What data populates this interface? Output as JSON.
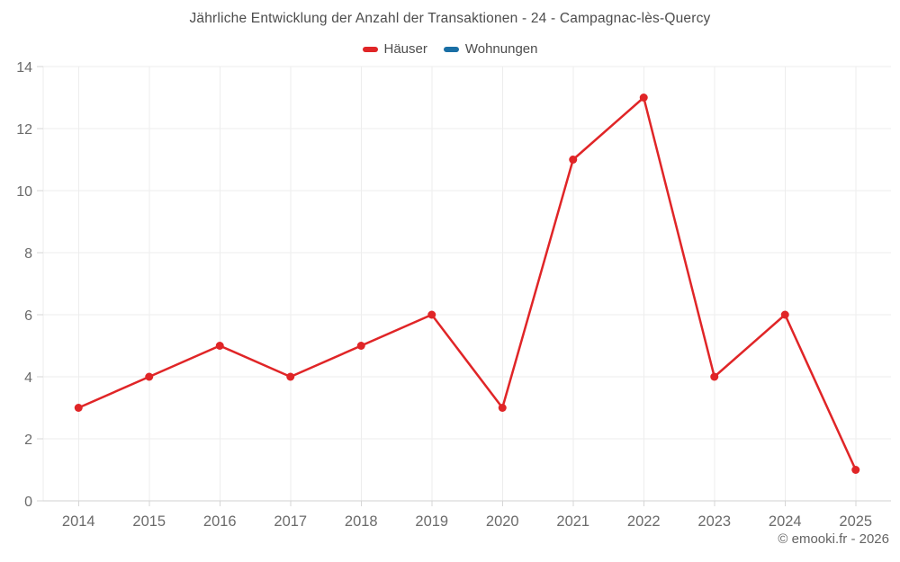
{
  "chart": {
    "title": "Jährliche Entwicklung der Anzahl der Transaktionen - 24 - Campagnac-lès-Quercy",
    "copyright": "© emooki.fr - 2026"
  },
  "chart_data": {
    "type": "line",
    "title": "Jährliche Entwicklung der Anzahl der Transaktionen - 24 - Campagnac-lès-Quercy",
    "categories": [
      "2014",
      "2015",
      "2016",
      "2017",
      "2018",
      "2019",
      "2020",
      "2021",
      "2022",
      "2023",
      "2024",
      "2025"
    ],
    "series": [
      {
        "name": "Häuser",
        "color": "#e02527",
        "values": [
          3,
          4,
          5,
          4,
          5,
          6,
          3,
          11,
          13,
          4,
          6,
          1
        ]
      },
      {
        "name": "Wohnungen",
        "color": "#1a6fa5",
        "values": []
      }
    ],
    "xlabel": "",
    "ylabel": "",
    "ylim": [
      0,
      14
    ],
    "yticks": [
      0,
      2,
      4,
      6,
      8,
      10,
      12,
      14
    ],
    "grid": true,
    "legend_position": "top",
    "colors": {
      "grid": "#ededed",
      "axis_line": "#d2d2d2",
      "tick": "#d6d6d6",
      "axis_text": "#6b6b6b"
    }
  }
}
